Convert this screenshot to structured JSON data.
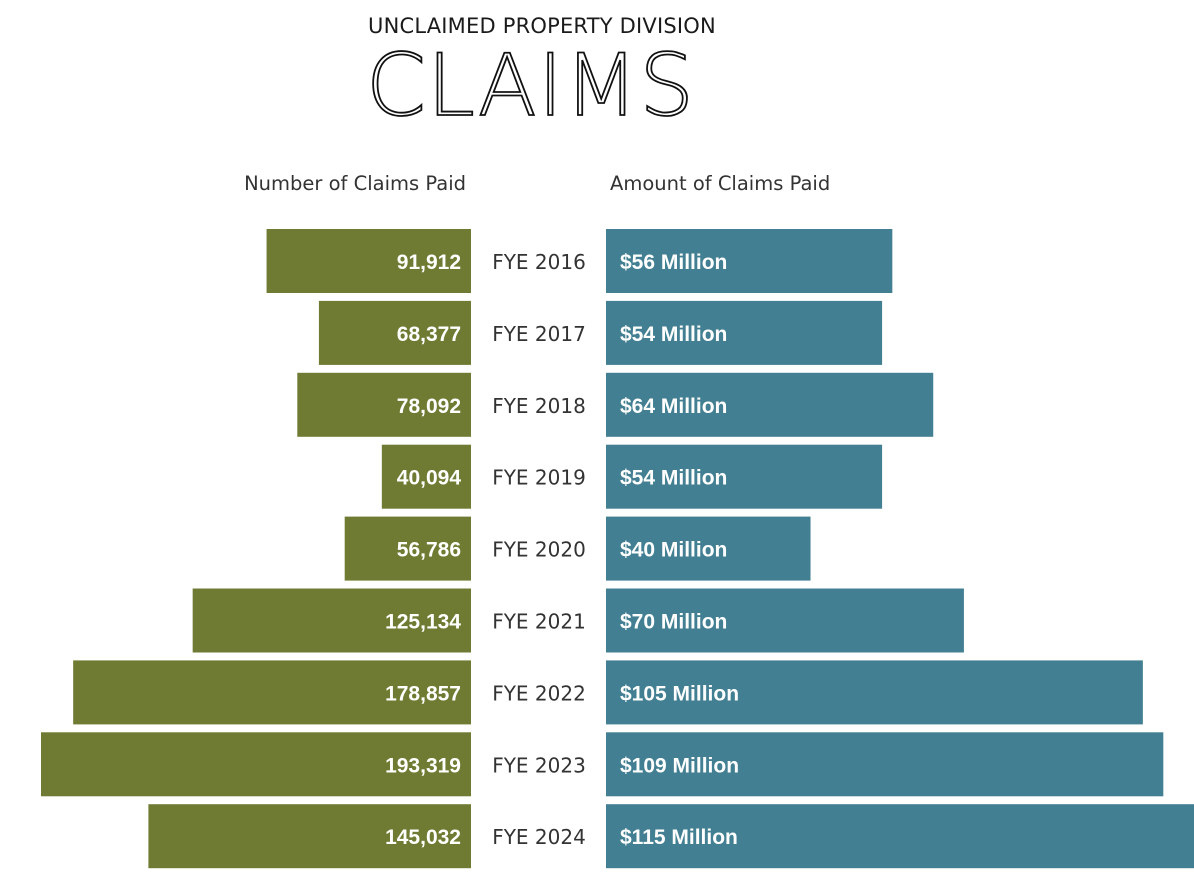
{
  "header": {
    "supertitle": "UNCLAIMED PROPERTY DIVISION",
    "title": "CLAIMS"
  },
  "chart_data": {
    "type": "bar",
    "categories": [
      "FYE 2016",
      "FYE 2017",
      "FYE 2018",
      "FYE 2019",
      "FYE 2020",
      "FYE 2021",
      "FYE 2022",
      "FYE 2023",
      "FYE 2024"
    ],
    "series": [
      {
        "name": "Number of Claims Paid",
        "values": [
          91912,
          68377,
          78092,
          40094,
          56786,
          125134,
          178857,
          193319,
          145032
        ],
        "labels": [
          "91,912",
          "68,377",
          "78,092",
          "40,094",
          "56,786",
          "125,134",
          "178,857",
          "193,319",
          "145,032"
        ],
        "color": "#6f7b33",
        "direction": "left"
      },
      {
        "name": "Amount of Claims Paid",
        "values": [
          56,
          54,
          64,
          54,
          40,
          70,
          105,
          109,
          115
        ],
        "unit": "Million",
        "labels": [
          "$56 Million",
          "$54 Million",
          "$64 Million",
          "$54 Million",
          "$40 Million",
          "$70 Million",
          "$105 Million",
          "$109 Million",
          "$115 Million"
        ],
        "color": "#437f92",
        "direction": "right"
      }
    ],
    "legend": "none",
    "grid": false
  }
}
